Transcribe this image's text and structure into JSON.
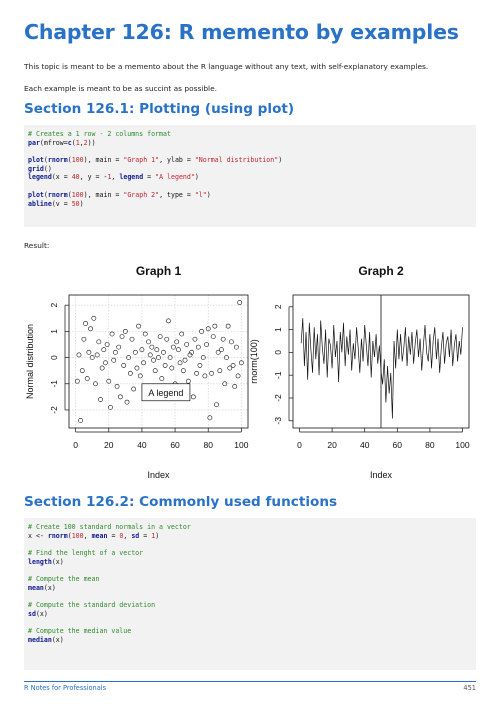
{
  "chapter": {
    "title": "Chapter 126: R memento by examples"
  },
  "intro": {
    "line1": "This topic is meant to be a memento about the R language without any text, with self-explanatory examples.",
    "line2": "Each example is meant to be as succint as possible."
  },
  "section1": {
    "title": "Section 126.1: Plotting (using plot)",
    "code": [
      [
        [
          "com",
          "# Creates a 1 row - 2 columns format"
        ]
      ],
      [
        [
          "fn",
          "par"
        ],
        [
          "txt",
          "(mfrow="
        ],
        [
          "fn",
          "c"
        ],
        [
          "txt",
          "("
        ],
        [
          "num",
          "1"
        ],
        [
          "txt",
          ","
        ],
        [
          "num",
          "2"
        ],
        [
          "txt",
          "))"
        ]
      ],
      [],
      [
        [
          "fn",
          "plot"
        ],
        [
          "txt",
          "("
        ],
        [
          "fn",
          "rnorm"
        ],
        [
          "txt",
          "("
        ],
        [
          "num",
          "100"
        ],
        [
          "txt",
          "), main = "
        ],
        [
          "str",
          "\"Graph 1\""
        ],
        [
          "txt",
          ", ylab = "
        ],
        [
          "str",
          "\"Normal distribution\""
        ],
        [
          "txt",
          ")"
        ]
      ],
      [
        [
          "fn",
          "grid"
        ],
        [
          "txt",
          "()"
        ]
      ],
      [
        [
          "fn",
          "legend"
        ],
        [
          "txt",
          "(x = "
        ],
        [
          "num",
          "40"
        ],
        [
          "txt",
          ", y = -"
        ],
        [
          "num",
          "1"
        ],
        [
          "txt",
          ", "
        ],
        [
          "kw",
          "legend"
        ],
        [
          "txt",
          " = "
        ],
        [
          "str",
          "\"A legend\""
        ],
        [
          "txt",
          ")"
        ]
      ],
      [],
      [
        [
          "fn",
          "plot"
        ],
        [
          "txt",
          "("
        ],
        [
          "fn",
          "rnorm"
        ],
        [
          "txt",
          "("
        ],
        [
          "num",
          "100"
        ],
        [
          "txt",
          "), main = "
        ],
        [
          "str",
          "\"Graph 2\""
        ],
        [
          "txt",
          ", type = "
        ],
        [
          "str",
          "\"l\""
        ],
        [
          "txt",
          ")"
        ]
      ],
      [
        [
          "fn",
          "abline"
        ],
        [
          "txt",
          "(v = "
        ],
        [
          "num",
          "50"
        ],
        [
          "txt",
          ")"
        ]
      ]
    ],
    "result_label": "Result:"
  },
  "chart_data": [
    {
      "type": "scatter",
      "title": "Graph 1",
      "xlabel": "Index",
      "ylabel": "Normal distribution",
      "xlim": [
        0,
        100
      ],
      "ylim": [
        -2.5,
        2.2
      ],
      "xticks": [
        "0",
        "20",
        "40",
        "60",
        "80",
        "100"
      ],
      "yticks": [
        "-2",
        "-1",
        "0",
        "1",
        "2"
      ],
      "grid": true,
      "legend_text": "A legend",
      "x": [
        1,
        2,
        3,
        4,
        5,
        6,
        7,
        8,
        9,
        10,
        11,
        12,
        13,
        14,
        15,
        16,
        17,
        18,
        19,
        20,
        21,
        22,
        23,
        24,
        25,
        26,
        27,
        28,
        29,
        30,
        31,
        32,
        33,
        34,
        35,
        36,
        37,
        38,
        39,
        40,
        41,
        42,
        43,
        44,
        45,
        46,
        47,
        48,
        49,
        50,
        51,
        52,
        53,
        54,
        55,
        56,
        57,
        58,
        59,
        60,
        61,
        62,
        63,
        64,
        65,
        66,
        67,
        68,
        69,
        70,
        71,
        72,
        73,
        74,
        75,
        76,
        77,
        78,
        79,
        80,
        81,
        82,
        83,
        84,
        85,
        86,
        87,
        88,
        89,
        90,
        91,
        92,
        93,
        94,
        95,
        96,
        97,
        98,
        99,
        100
      ],
      "y": [
        -0.9,
        0.1,
        -2.4,
        -0.5,
        0.7,
        1.3,
        -0.8,
        0.2,
        1.1,
        0.0,
        1.5,
        -1.0,
        0.1,
        0.6,
        -1.6,
        -0.4,
        0.3,
        -0.2,
        0.5,
        -0.9,
        -1.9,
        0.9,
        -0.1,
        0.2,
        -1.1,
        0.4,
        -1.5,
        0.8,
        -0.3,
        1.0,
        -1.7,
        0.0,
        -0.6,
        0.7,
        -1.2,
        0.2,
        -0.4,
        1.2,
        -0.7,
        0.3,
        -0.2,
        0.9,
        -1.3,
        0.6,
        0.1,
        0.4,
        -0.1,
        -0.5,
        0.3,
        0.0,
        0.8,
        -0.8,
        0.2,
        -0.3,
        0.7,
        1.4,
        0.0,
        -0.4,
        0.4,
        -1.0,
        0.6,
        0.3,
        -0.2,
        0.9,
        -0.5,
        -0.1,
        0.5,
        -0.9,
        0.1,
        0.2,
        -1.5,
        0.7,
        -0.6,
        0.4,
        -0.3,
        1.0,
        0.0,
        -0.7,
        0.5,
        1.1,
        -2.3,
        -0.6,
        0.8,
        1.2,
        -1.8,
        0.2,
        -0.5,
        0.3,
        0.7,
        -1.0,
        0.0,
        1.2,
        -0.4,
        0.6,
        -0.3,
        -1.1,
        0.4,
        -0.7,
        2.1,
        -0.2
      ]
    },
    {
      "type": "line",
      "title": "Graph 2",
      "xlabel": "Index",
      "ylabel": "rnorm(100)",
      "xlim": [
        0,
        100
      ],
      "ylim": [
        -3.1,
        2.3
      ],
      "xticks": [
        "0",
        "20",
        "40",
        "60",
        "80",
        "100"
      ],
      "yticks": [
        "-3",
        "-2",
        "-1",
        "0",
        "1",
        "2"
      ],
      "vline": 50,
      "x": [
        1,
        2,
        3,
        4,
        5,
        6,
        7,
        8,
        9,
        10,
        11,
        12,
        13,
        14,
        15,
        16,
        17,
        18,
        19,
        20,
        21,
        22,
        23,
        24,
        25,
        26,
        27,
        28,
        29,
        30,
        31,
        32,
        33,
        34,
        35,
        36,
        37,
        38,
        39,
        40,
        41,
        42,
        43,
        44,
        45,
        46,
        47,
        48,
        49,
        50,
        51,
        52,
        53,
        54,
        55,
        56,
        57,
        58,
        59,
        60,
        61,
        62,
        63,
        64,
        65,
        66,
        67,
        68,
        69,
        70,
        71,
        72,
        73,
        74,
        75,
        76,
        77,
        78,
        79,
        80,
        81,
        82,
        83,
        84,
        85,
        86,
        87,
        88,
        89,
        90,
        91,
        92,
        93,
        94,
        95,
        96,
        97,
        98,
        99,
        100
      ],
      "y": [
        0.4,
        1.5,
        -0.6,
        0.9,
        -1.2,
        1.3,
        0.1,
        -0.9,
        1.1,
        -0.3,
        0.8,
        -1.0,
        1.4,
        0.2,
        -0.5,
        1.0,
        -1.1,
        0.6,
        0.3,
        -0.7,
        1.2,
        -0.2,
        0.5,
        -1.3,
        0.9,
        0.0,
        1.3,
        -0.6,
        0.7,
        -0.1,
        1.0,
        -0.8,
        0.4,
        -0.3,
        1.1,
        0.2,
        -0.9,
        0.6,
        -0.4,
        1.2,
        0.3,
        -0.6,
        0.9,
        -1.1,
        0.5,
        -0.2,
        0.8,
        -0.5,
        0.3,
        -0.8,
        -1.4,
        -0.3,
        -2.2,
        -0.6,
        -1.8,
        -0.9,
        -2.9,
        0.5,
        -0.7,
        1.0,
        -0.3,
        0.8,
        -0.4,
        0.2,
        1.1,
        -0.6,
        0.7,
        -0.1,
        0.9,
        -0.5,
        0.4,
        1.0,
        -0.2,
        0.6,
        -0.8,
        0.3,
        1.2,
        0.0,
        -0.4,
        0.8,
        -0.7,
        0.5,
        1.1,
        -0.3,
        0.6,
        -0.9,
        0.2,
        0.9,
        -0.5,
        0.4,
        0.7,
        -0.2,
        1.0,
        -0.6,
        0.3,
        0.8,
        -0.4,
        0.5,
        -0.1,
        1.1
      ]
    }
  ],
  "section2": {
    "title": "Section 126.2: Commonly used functions",
    "code": [
      [
        [
          "com",
          "# Create 100 standard normals in a vector"
        ]
      ],
      [
        [
          "txt",
          "x <- "
        ],
        [
          "fn",
          "rnorm"
        ],
        [
          "txt",
          "("
        ],
        [
          "num",
          "100"
        ],
        [
          "txt",
          ", "
        ],
        [
          "kw",
          "mean"
        ],
        [
          "txt",
          " = "
        ],
        [
          "num",
          "0"
        ],
        [
          "txt",
          ", "
        ],
        [
          "kw",
          "sd"
        ],
        [
          "txt",
          " = "
        ],
        [
          "num",
          "1"
        ],
        [
          "txt",
          ")"
        ]
      ],
      [],
      [
        [
          "com",
          "# Find the lenght of a vector"
        ]
      ],
      [
        [
          "fn",
          "length"
        ],
        [
          "txt",
          "(x)"
        ]
      ],
      [],
      [
        [
          "com",
          "# Compute the mean"
        ]
      ],
      [
        [
          "fn",
          "mean"
        ],
        [
          "txt",
          "(x)"
        ]
      ],
      [],
      [
        [
          "com",
          "# Compute the standard deviation"
        ]
      ],
      [
        [
          "fn",
          "sd"
        ],
        [
          "txt",
          "(x)"
        ]
      ],
      [],
      [
        [
          "com",
          "# Compute the median value"
        ]
      ],
      [
        [
          "fn",
          "median"
        ],
        [
          "txt",
          "(x)"
        ]
      ]
    ]
  },
  "footer": {
    "book": "R Notes for Professionals",
    "page": "451"
  }
}
